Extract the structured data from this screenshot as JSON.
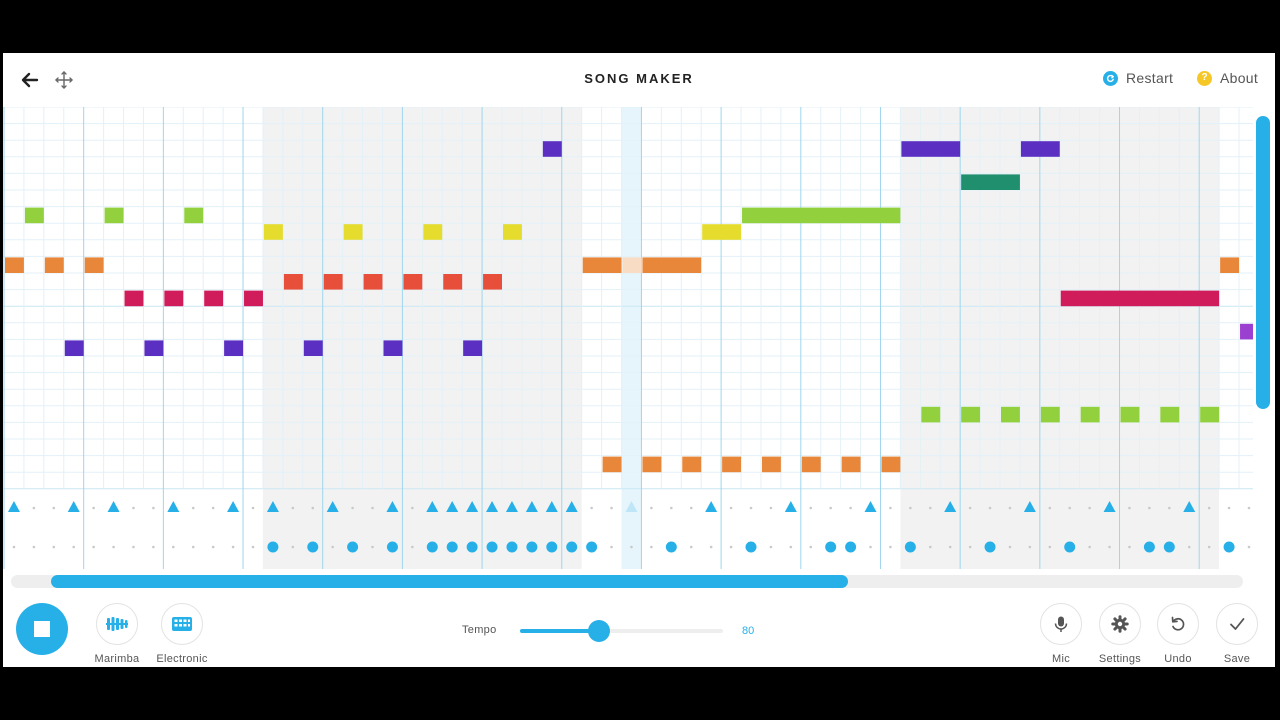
{
  "app": {
    "title": "SONG MAKER",
    "restart_label": "Restart",
    "about_label": "About",
    "about_glyph": "?",
    "back_icon": "arrow-left-icon",
    "move_icon": "move-arrows-icon"
  },
  "controls": {
    "instrument_label": "Marimba",
    "percussion_label": "Electronic",
    "tempo_label": "Tempo",
    "tempo_value": "80",
    "tempo_fraction": 0.39,
    "mic_label": "Mic",
    "settings_label": "Settings",
    "undo_label": "Undo",
    "save_label": "Save",
    "play_state": "playing"
  },
  "colors": {
    "accent": "#27b0e8",
    "grid_line": "#e3f1f8",
    "bar_line": "#9fd6ee",
    "shaded_bar": "#f2f2f2",
    "playhead": "#e6f5fc"
  },
  "grid": {
    "visible_columns": 62,
    "columns_per_bar": 4,
    "melody_rows": 23,
    "shaded_ranges": [
      [
        13,
        28
      ],
      [
        45,
        60
      ]
    ],
    "playhead_column": 31,
    "horizontal_scroll": {
      "start": 0.04,
      "size": 0.64
    },
    "vertical_scroll": {
      "start": 0.0,
      "size": 0.64
    }
  },
  "melody_notes": [
    {
      "col": 0,
      "row": 9,
      "len": 1,
      "color": "#e8873a"
    },
    {
      "col": 1,
      "row": 6,
      "len": 1,
      "color": "#92d13d"
    },
    {
      "col": 2,
      "row": 9,
      "len": 1,
      "color": "#e8873a"
    },
    {
      "col": 3,
      "row": 14,
      "len": 1,
      "color": "#5b2fc2"
    },
    {
      "col": 4,
      "row": 9,
      "len": 1,
      "color": "#e8873a"
    },
    {
      "col": 5,
      "row": 6,
      "len": 1,
      "color": "#92d13d"
    },
    {
      "col": 6,
      "row": 11,
      "len": 1,
      "color": "#d11c5b"
    },
    {
      "col": 7,
      "row": 14,
      "len": 1,
      "color": "#5b2fc2"
    },
    {
      "col": 8,
      "row": 11,
      "len": 1,
      "color": "#d11c5b"
    },
    {
      "col": 9,
      "row": 6,
      "len": 1,
      "color": "#92d13d"
    },
    {
      "col": 10,
      "row": 11,
      "len": 1,
      "color": "#d11c5b"
    },
    {
      "col": 11,
      "row": 14,
      "len": 1,
      "color": "#5b2fc2"
    },
    {
      "col": 12,
      "row": 11,
      "len": 1,
      "color": "#d11c5b"
    },
    {
      "col": 13,
      "row": 7,
      "len": 1,
      "color": "#e5dc2e"
    },
    {
      "col": 14,
      "row": 10,
      "len": 1,
      "color": "#e84f3a"
    },
    {
      "col": 15,
      "row": 14,
      "len": 1,
      "color": "#5b2fc2"
    },
    {
      "col": 16,
      "row": 10,
      "len": 1,
      "color": "#e84f3a"
    },
    {
      "col": 17,
      "row": 7,
      "len": 1,
      "color": "#e5dc2e"
    },
    {
      "col": 18,
      "row": 10,
      "len": 1,
      "color": "#e84f3a"
    },
    {
      "col": 19,
      "row": 14,
      "len": 1,
      "color": "#5b2fc2"
    },
    {
      "col": 20,
      "row": 10,
      "len": 1,
      "color": "#e84f3a"
    },
    {
      "col": 21,
      "row": 7,
      "len": 1,
      "color": "#e5dc2e"
    },
    {
      "col": 22,
      "row": 10,
      "len": 1,
      "color": "#e84f3a"
    },
    {
      "col": 23,
      "row": 14,
      "len": 1,
      "color": "#5b2fc2"
    },
    {
      "col": 24,
      "row": 10,
      "len": 1,
      "color": "#e84f3a"
    },
    {
      "col": 25,
      "row": 7,
      "len": 1,
      "color": "#e5dc2e"
    },
    {
      "col": 27,
      "row": 2,
      "len": 1,
      "color": "#5b2fc2"
    },
    {
      "col": 29,
      "row": 9,
      "len": 2,
      "color": "#e8873a"
    },
    {
      "col": 30,
      "row": 21,
      "len": 1,
      "color": "#e8873a"
    },
    {
      "col": 31,
      "row": 9,
      "len": 1,
      "color": "#f9dcc4"
    },
    {
      "col": 32,
      "row": 9,
      "len": 3,
      "color": "#e8873a"
    },
    {
      "col": 32,
      "row": 21,
      "len": 1,
      "color": "#e8873a"
    },
    {
      "col": 34,
      "row": 21,
      "len": 1,
      "color": "#e8873a"
    },
    {
      "col": 35,
      "row": 7,
      "len": 2,
      "color": "#e5dc2e"
    },
    {
      "col": 36,
      "row": 21,
      "len": 1,
      "color": "#e8873a"
    },
    {
      "col": 37,
      "row": 6,
      "len": 8,
      "color": "#92d13d"
    },
    {
      "col": 38,
      "row": 21,
      "len": 1,
      "color": "#e8873a"
    },
    {
      "col": 40,
      "row": 21,
      "len": 1,
      "color": "#e8873a"
    },
    {
      "col": 42,
      "row": 21,
      "len": 1,
      "color": "#e8873a"
    },
    {
      "col": 44,
      "row": 21,
      "len": 1,
      "color": "#e8873a"
    },
    {
      "col": 45,
      "row": 2,
      "len": 3,
      "color": "#5b2fc2"
    },
    {
      "col": 46,
      "row": 18,
      "len": 1,
      "color": "#92d13d"
    },
    {
      "col": 48,
      "row": 4,
      "len": 3,
      "color": "#1f8f6e"
    },
    {
      "col": 48,
      "row": 18,
      "len": 1,
      "color": "#92d13d"
    },
    {
      "col": 50,
      "row": 18,
      "len": 1,
      "color": "#92d13d"
    },
    {
      "col": 51,
      "row": 2,
      "len": 2,
      "color": "#5b2fc2"
    },
    {
      "col": 52,
      "row": 18,
      "len": 1,
      "color": "#92d13d"
    },
    {
      "col": 53,
      "row": 11,
      "len": 8,
      "color": "#d11c5b"
    },
    {
      "col": 54,
      "row": 18,
      "len": 1,
      "color": "#92d13d"
    },
    {
      "col": 56,
      "row": 18,
      "len": 1,
      "color": "#92d13d"
    },
    {
      "col": 58,
      "row": 18,
      "len": 1,
      "color": "#92d13d"
    },
    {
      "col": 60,
      "row": 18,
      "len": 1,
      "color": "#92d13d"
    },
    {
      "col": 61,
      "row": 9,
      "len": 1,
      "color": "#e8873a"
    },
    {
      "col": 62,
      "row": 13,
      "len": 1,
      "color": "#9b3fd0"
    }
  ],
  "percussion": {
    "triangles": [
      0,
      3,
      5,
      8,
      11,
      13,
      16,
      19,
      21,
      22,
      23,
      24,
      25,
      26,
      27,
      28,
      35,
      39,
      43,
      47,
      51,
      55,
      59
    ],
    "faint_triangles": [
      31
    ],
    "circles": [
      13,
      15,
      17,
      19,
      21,
      22,
      23,
      24,
      25,
      26,
      27,
      28,
      29,
      33,
      37,
      41,
      42,
      45,
      49,
      53,
      57,
      58,
      61
    ]
  }
}
